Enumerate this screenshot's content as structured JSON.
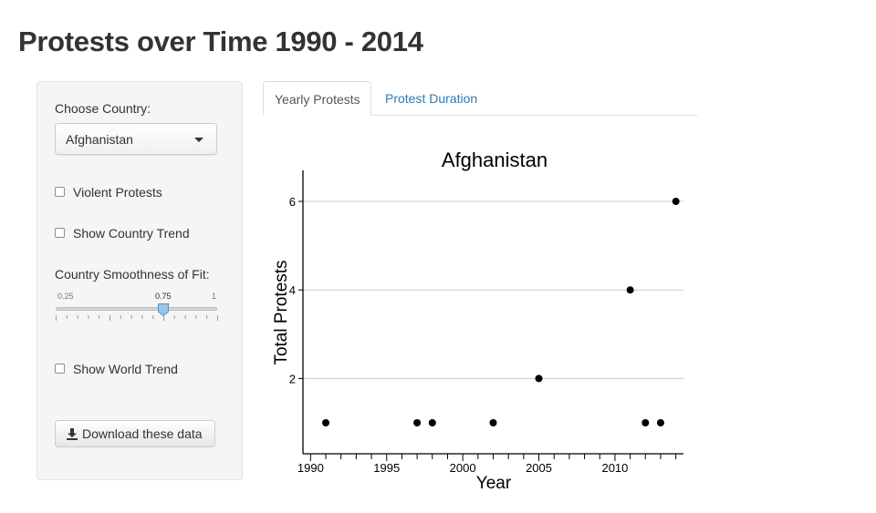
{
  "page": {
    "title": "Protests over Time 1990 - 2014"
  },
  "sidebar": {
    "country_label": "Choose Country:",
    "country_value": "Afghanistan",
    "violent_label": "Violent Protests",
    "country_trend_label": "Show Country Trend",
    "smooth_label": "Country Smoothness of Fit:",
    "slider": {
      "min": "0.25",
      "value": "0.75",
      "max": "1",
      "min_num": 0.25,
      "value_num": 0.75,
      "max_num": 1
    },
    "world_trend_label": "Show World Trend",
    "download_label": "Download these data"
  },
  "tabs": [
    {
      "label": "Yearly Protests",
      "active": true
    },
    {
      "label": "Protest Duration",
      "active": false
    }
  ],
  "chart_data": {
    "type": "scatter",
    "title": "Afghanistan",
    "xlabel": "Year",
    "ylabel": "Total Protests",
    "x": [
      1991,
      1997,
      1998,
      2002,
      2005,
      2011,
      2012,
      2013,
      2014
    ],
    "y": [
      1,
      1,
      1,
      1,
      2,
      4,
      1,
      1,
      6
    ],
    "xlim": [
      1989.5,
      2014.5
    ],
    "ylim": [
      0.3,
      6.7
    ],
    "x_ticks": [
      1990,
      1995,
      2000,
      2005,
      2010
    ],
    "x_minor_step": 1,
    "y_ticks": [
      2,
      4,
      6
    ],
    "grid": "horizontal"
  },
  "colors": {
    "link": "#2a7ab5",
    "slider_handle": "#9cc4ea",
    "point": "#000000",
    "grid": "#cccccc"
  }
}
